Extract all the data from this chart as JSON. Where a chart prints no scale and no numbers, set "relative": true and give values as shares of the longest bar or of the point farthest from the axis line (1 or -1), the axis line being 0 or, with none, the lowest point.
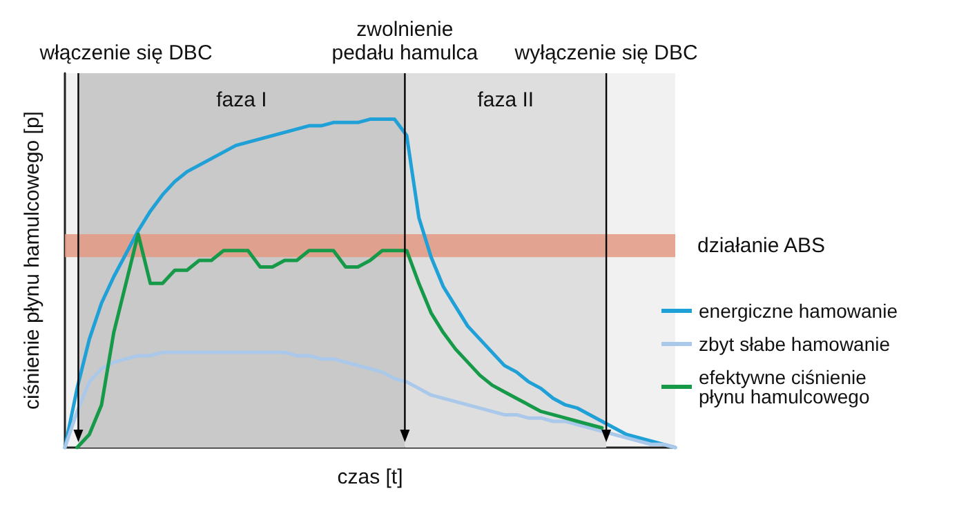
{
  "chart_data": {
    "type": "line",
    "relative": true,
    "xlabel": "czas [t]",
    "ylabel": "ciśnienie płynu hamulcowego [p]",
    "categories": [
      null,
      null,
      null,
      null,
      null,
      null,
      null,
      null,
      null,
      null,
      null,
      null,
      null,
      null,
      null,
      null,
      null,
      null,
      null,
      null,
      null,
      null,
      null,
      null,
      null,
      null,
      null,
      null,
      null,
      null,
      null,
      null,
      null,
      null,
      null,
      null,
      null,
      null,
      null,
      null,
      null,
      null,
      null,
      null,
      null,
      null,
      null,
      null,
      null,
      null,
      null
    ],
    "grid": false,
    "legend": "right",
    "marker": "none",
    "line_style": "solid",
    "series": [
      {
        "name": "energiczne hamowanie",
        "color": "#1fa0d6",
        "values": [
          0,
          0.18,
          0.33,
          0.44,
          0.52,
          0.59,
          0.66,
          0.72,
          0.77,
          0.81,
          0.84,
          0.86,
          0.88,
          0.9,
          0.92,
          0.93,
          0.94,
          0.95,
          0.96,
          0.97,
          0.98,
          0.98,
          0.99,
          0.99,
          0.99,
          1,
          1,
          1,
          0.95,
          0.7,
          0.58,
          0.49,
          0.43,
          0.37,
          0.33,
          0.29,
          0.25,
          0.23,
          0.2,
          0.18,
          0.15,
          0.13,
          0.12,
          0.1,
          0.08,
          0.06,
          0.04,
          0.03,
          0.02,
          0.01,
          0
        ]
      },
      {
        "name": "zbyt słabe hamowanie",
        "color": "#a9c8ea",
        "values": [
          0,
          0.11,
          0.2,
          0.24,
          0.26,
          0.27,
          0.28,
          0.28,
          0.29,
          0.29,
          0.29,
          0.29,
          0.29,
          0.29,
          0.29,
          0.29,
          0.29,
          0.29,
          0.29,
          0.28,
          0.28,
          0.27,
          0.27,
          0.26,
          0.25,
          0.24,
          0.23,
          0.21,
          0.2,
          0.18,
          0.16,
          0.15,
          0.14,
          0.13,
          0.12,
          0.11,
          0.1,
          0.1,
          0.09,
          0.09,
          0.08,
          0.08,
          0.07,
          0.06,
          0.05,
          0.04,
          0.03,
          0.02,
          0.01,
          0.01,
          0
        ]
      },
      {
        "name": "efektywne ciśnienie płynu hamulcowego",
        "color": "#169a4a",
        "values": [
          null,
          0,
          0.04,
          0.13,
          0.35,
          0.5,
          0.65,
          0.5,
          0.5,
          0.54,
          0.54,
          0.57,
          0.57,
          0.6,
          0.6,
          0.6,
          0.55,
          0.55,
          0.57,
          0.57,
          0.6,
          0.6,
          0.6,
          0.55,
          0.55,
          0.57,
          0.6,
          0.6,
          0.6,
          0.5,
          0.41,
          0.35,
          0.3,
          0.26,
          0.22,
          0.19,
          0.17,
          0.15,
          0.13,
          0.11,
          0.1,
          0.09,
          0.08,
          0.07,
          0.06,
          null,
          null,
          null,
          null,
          null,
          null
        ]
      }
    ],
    "annotations": [
      "włączenie się DBC",
      "zwolnienie\npedału hamulca",
      "wyłączenie się DBC",
      "faza I",
      "faza II"
    ],
    "bands": [
      {
        "axis": "y",
        "from": 0.58,
        "to": 0.65,
        "label": "działanie ABS",
        "color": "#e39a82"
      }
    ]
  }
}
